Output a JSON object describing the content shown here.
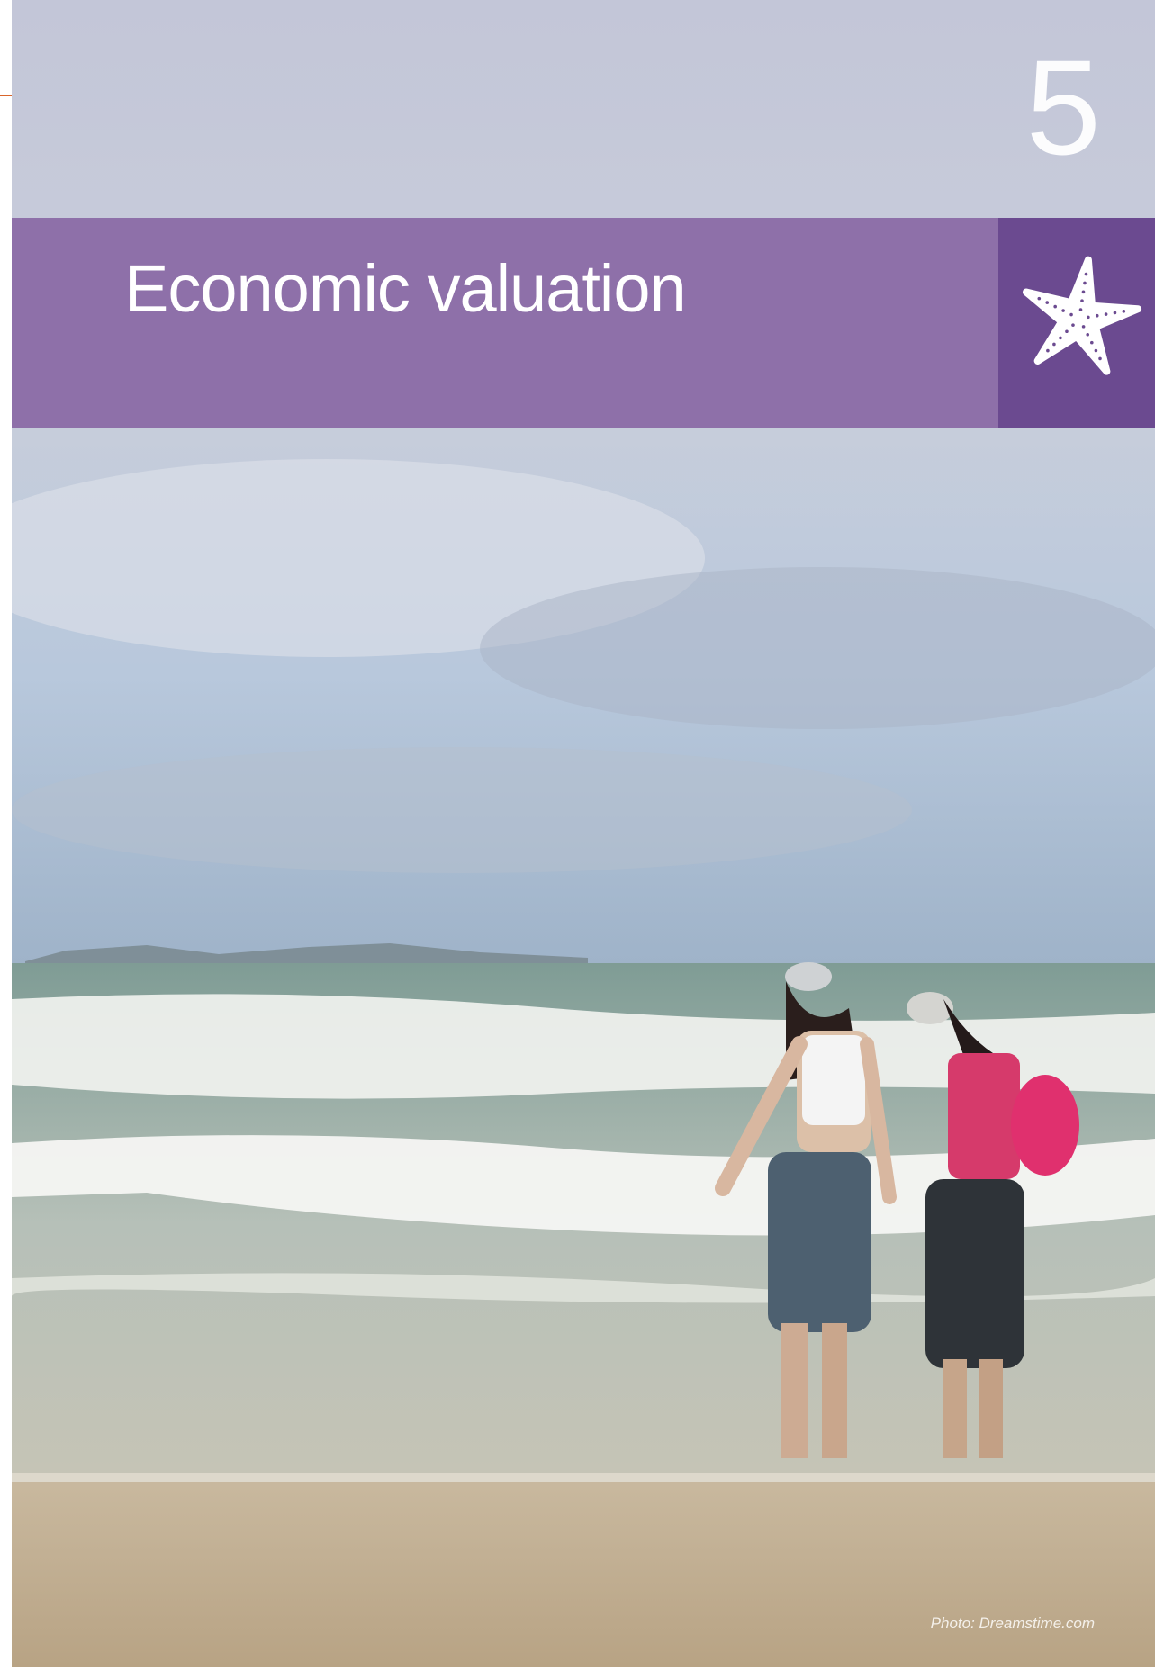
{
  "chapter_number": "5",
  "title": "Economic valuation",
  "photo_credit": "Photo: Dreamstime.com"
}
